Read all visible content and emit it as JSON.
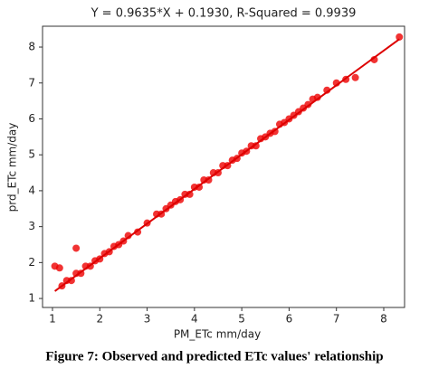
{
  "chart_data": {
    "type": "scatter",
    "title": "Y = 0.9635*X + 0.1930, R-Squared = 0.9939",
    "x_label": "PM_ETc mm/day",
    "y_label": "prd_ETc mm/day",
    "color": "#ee0000",
    "x": [
      1.05,
      1.15,
      1.5,
      1.2,
      1.3,
      1.4,
      1.5,
      1.6,
      1.7,
      1.8,
      1.9,
      2.0,
      2.1,
      2.2,
      2.3,
      2.4,
      2.5,
      2.6,
      2.8,
      3.0,
      3.2,
      3.3,
      3.4,
      3.5,
      3.6,
      3.7,
      3.8,
      3.9,
      4.0,
      4.1,
      4.2,
      4.3,
      4.4,
      4.5,
      4.6,
      4.7,
      4.8,
      4.9,
      5.0,
      5.1,
      5.2,
      5.3,
      5.4,
      5.5,
      5.6,
      5.7,
      5.8,
      5.9,
      6.0,
      6.1,
      6.2,
      6.3,
      6.4,
      6.5,
      6.6,
      6.8,
      7.0,
      7.2,
      7.4,
      7.8,
      8.33
    ],
    "values": [
      1.9,
      1.85,
      2.4,
      1.35,
      1.5,
      1.5,
      1.7,
      1.7,
      1.9,
      1.9,
      2.05,
      2.1,
      2.25,
      2.3,
      2.45,
      2.5,
      2.6,
      2.75,
      2.85,
      3.1,
      3.35,
      3.35,
      3.5,
      3.6,
      3.7,
      3.75,
      3.9,
      3.9,
      4.1,
      4.1,
      4.3,
      4.3,
      4.5,
      4.5,
      4.7,
      4.7,
      4.85,
      4.9,
      5.05,
      5.1,
      5.25,
      5.25,
      5.45,
      5.5,
      5.6,
      5.65,
      5.85,
      5.9,
      6.0,
      6.1,
      6.2,
      6.3,
      6.4,
      6.55,
      6.6,
      6.8,
      7.0,
      7.1,
      7.15,
      7.65,
      8.28
    ],
    "fit": {
      "x": [
        1.05,
        8.33
      ],
      "values": [
        1.205,
        8.219
      ],
      "color": "#dd0000"
    },
    "xlim": [
      0.79,
      8.44
    ],
    "ylim": [
      0.75,
      8.58
    ],
    "xticks": [
      1,
      2,
      3,
      4,
      5,
      6,
      7,
      8
    ],
    "yticks": [
      1,
      2,
      3,
      4,
      5,
      6,
      7,
      8
    ]
  },
  "caption": "Figure 7: Observed and predicted ETc values' relationship"
}
